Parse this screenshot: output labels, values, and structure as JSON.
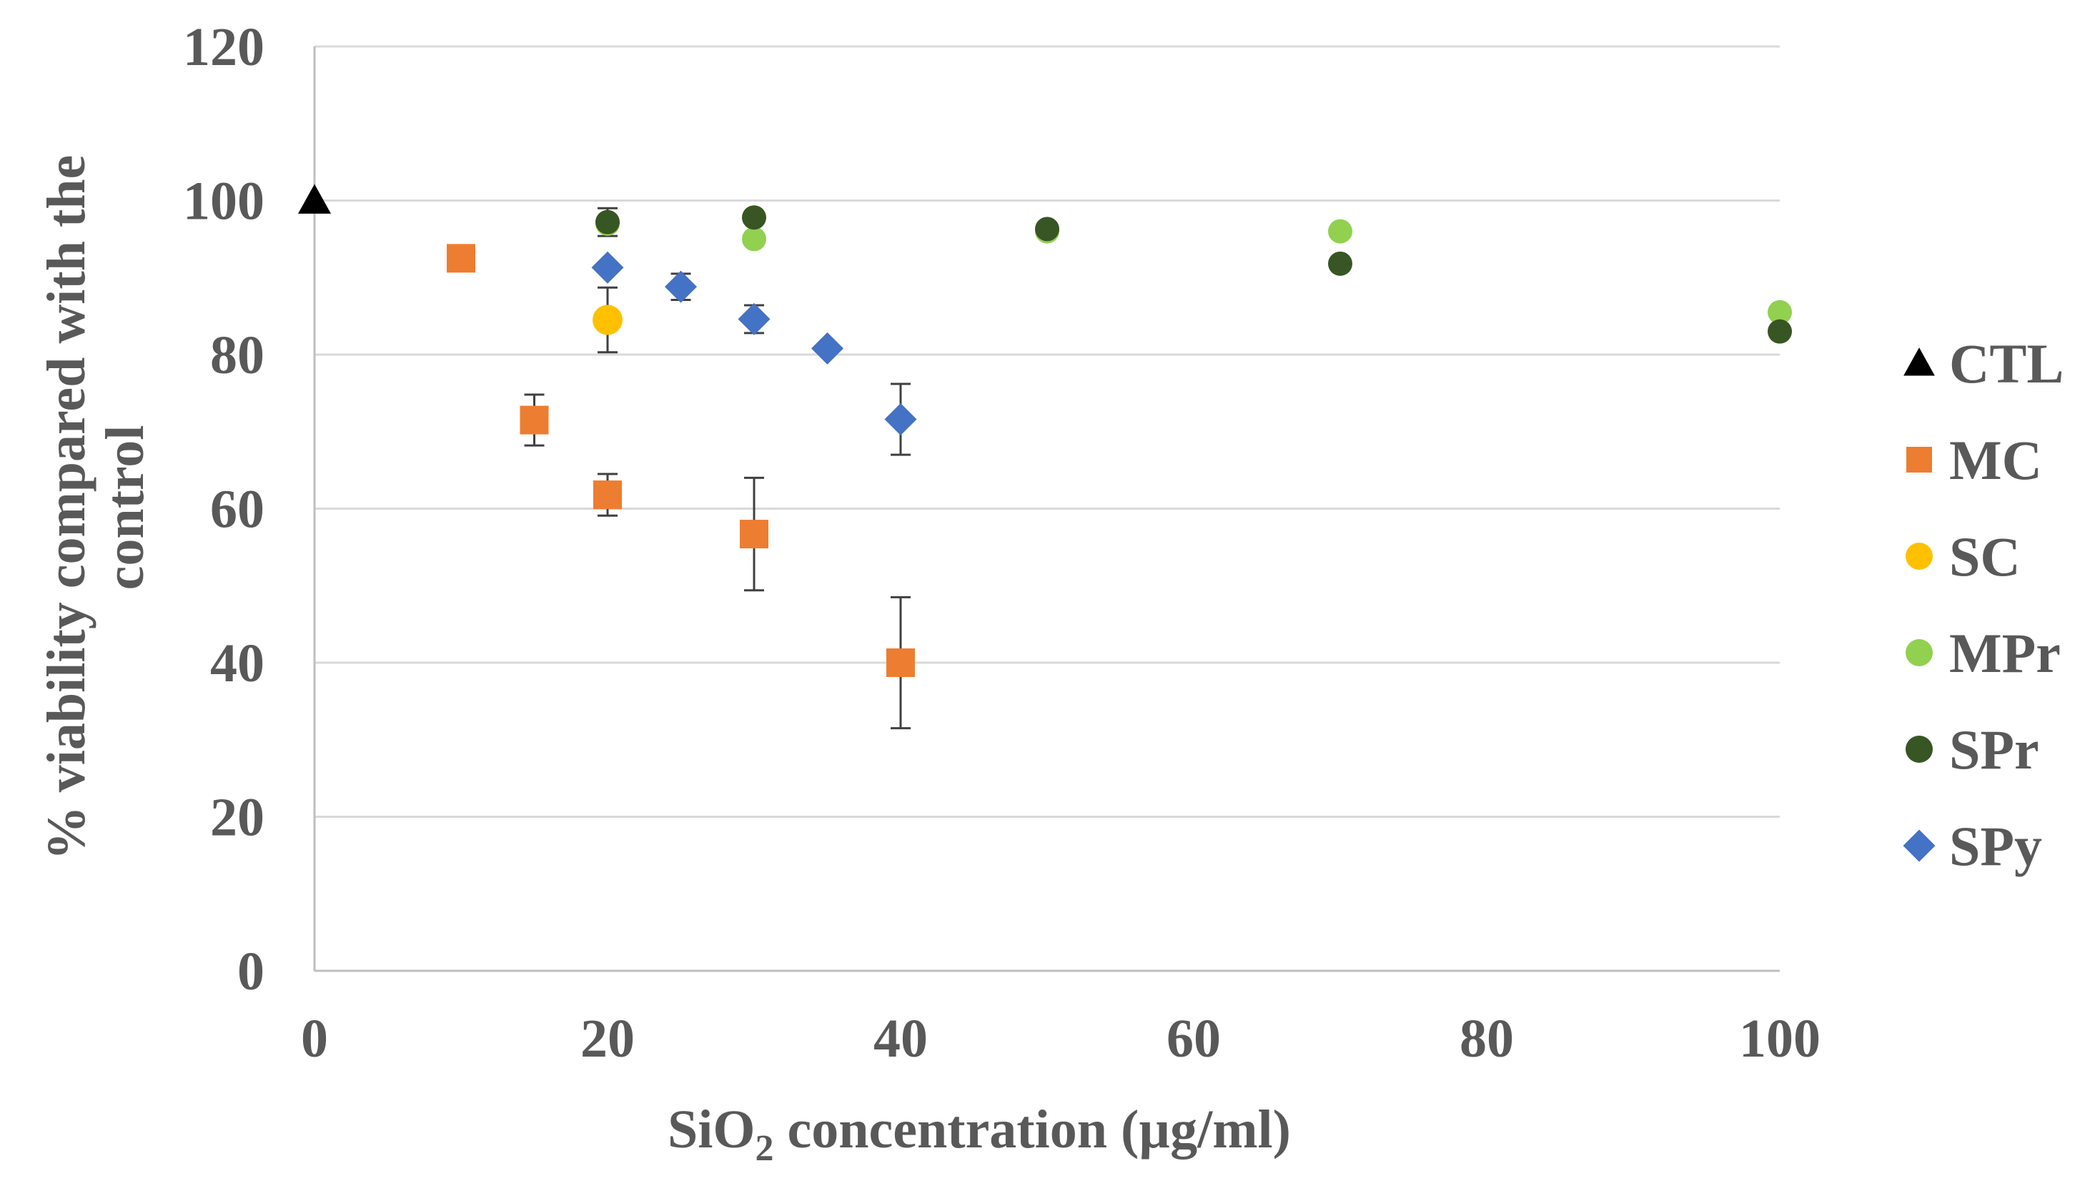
{
  "chart_data": {
    "type": "scatter",
    "title": "",
    "xlabel_main": "SiO",
    "xlabel_sub": "2",
    "xlabel_rest": " concentration (µg/ml)",
    "ylabel_line1": "% viability compared with the",
    "ylabel_line2": "control",
    "xlim": [
      0,
      100
    ],
    "ylim": [
      0,
      120
    ],
    "x_ticks": [
      0,
      20,
      40,
      60,
      80,
      100
    ],
    "y_ticks": [
      0,
      20,
      40,
      60,
      80,
      100,
      120
    ],
    "x_tick_labels": [
      "0",
      "20",
      "40",
      "60",
      "80",
      "100"
    ],
    "y_tick_labels": [
      "0",
      "20",
      "40",
      "60",
      "80",
      "100",
      "120"
    ],
    "grid": "horizontal",
    "legend_position": "right",
    "series": [
      {
        "name": "CTL",
        "marker": "triangle",
        "color": "#000000",
        "points": [
          {
            "x": 0,
            "y": 100
          }
        ]
      },
      {
        "name": "MC",
        "marker": "square",
        "color": "#ed7d31",
        "points": [
          {
            "x": 10,
            "y": 92.5
          },
          {
            "x": 15,
            "y": 71.5,
            "err": 3.3
          },
          {
            "x": 20,
            "y": 61.8,
            "err": 2.7
          },
          {
            "x": 30,
            "y": 56.7,
            "err": 7.3
          },
          {
            "x": 40,
            "y": 40.0,
            "err": 8.5
          }
        ]
      },
      {
        "name": "SC",
        "marker": "circle",
        "color": "#ffc000",
        "points": [
          {
            "x": 20,
            "y": 84.5,
            "err": 4.2
          }
        ]
      },
      {
        "name": "MPr",
        "marker": "circle",
        "color": "#92d050",
        "points": [
          {
            "x": 20,
            "y": 97.0
          },
          {
            "x": 30,
            "y": 95.0
          },
          {
            "x": 50,
            "y": 96.0
          },
          {
            "x": 70,
            "y": 96.0
          },
          {
            "x": 100,
            "y": 85.5
          }
        ]
      },
      {
        "name": "SPr",
        "marker": "circle",
        "color": "#375623",
        "points": [
          {
            "x": 20,
            "y": 97.2,
            "err": 1.8
          },
          {
            "x": 30,
            "y": 97.8
          },
          {
            "x": 50,
            "y": 96.3
          },
          {
            "x": 70,
            "y": 91.8
          },
          {
            "x": 100,
            "y": 83.0
          }
        ]
      },
      {
        "name": "SPy",
        "marker": "diamond",
        "color": "#4472c4",
        "points": [
          {
            "x": 20,
            "y": 91.3
          },
          {
            "x": 25,
            "y": 88.8,
            "err": 1.7
          },
          {
            "x": 30,
            "y": 84.6,
            "err": 1.8
          },
          {
            "x": 35,
            "y": 80.8
          },
          {
            "x": 40,
            "y": 71.6,
            "err": 4.6
          }
        ]
      }
    ]
  }
}
